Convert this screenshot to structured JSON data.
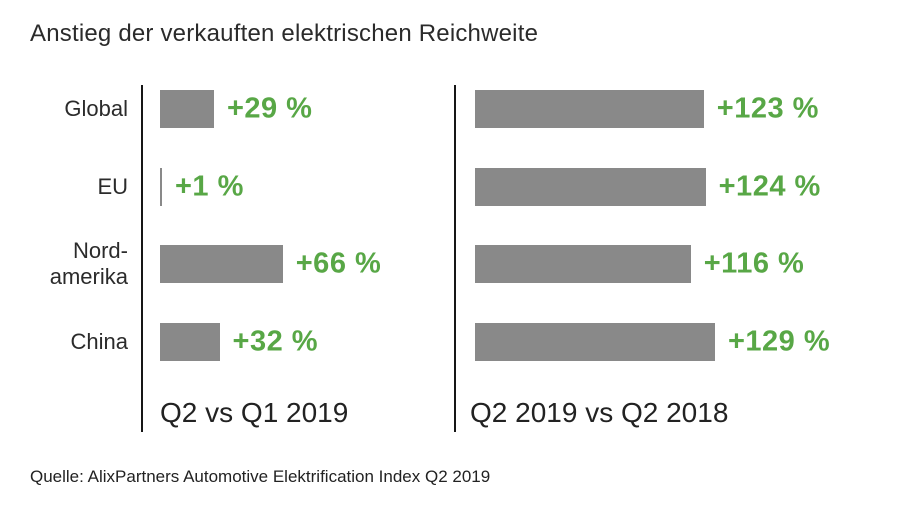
{
  "chart_data": {
    "type": "bar",
    "orientation": "horizontal",
    "title": "Anstieg der verkauften elektrischen Reichweite",
    "categories": [
      "Global",
      "EU",
      "Nord-amerika",
      "China"
    ],
    "category_lines": [
      [
        "Global"
      ],
      [
        "EU"
      ],
      [
        "Nord-",
        "amerika"
      ],
      [
        "China"
      ]
    ],
    "series": [
      {
        "name": "Q2 vs Q1 2019",
        "values": [
          29,
          1,
          66,
          32
        ],
        "labels": [
          "+29 %",
          "+1 %",
          "+66 %",
          "+32 %"
        ]
      },
      {
        "name": "Q2 2019 vs Q2 2018",
        "values": [
          123,
          124,
          116,
          129
        ],
        "labels": [
          "+123 %",
          "+124 %",
          "+116 %",
          "+129 %"
        ]
      }
    ],
    "unit": "%",
    "xlim": [
      0,
      135
    ],
    "grid": false,
    "legend_position": "none",
    "value_labels_shown": true,
    "colors": {
      "bar": "#898989",
      "value": "#58a746",
      "text": "#2b2b2b",
      "axis": "#161616"
    },
    "source": "Quelle: AlixPartners Automotive Elektrification Index Q2 2019"
  }
}
